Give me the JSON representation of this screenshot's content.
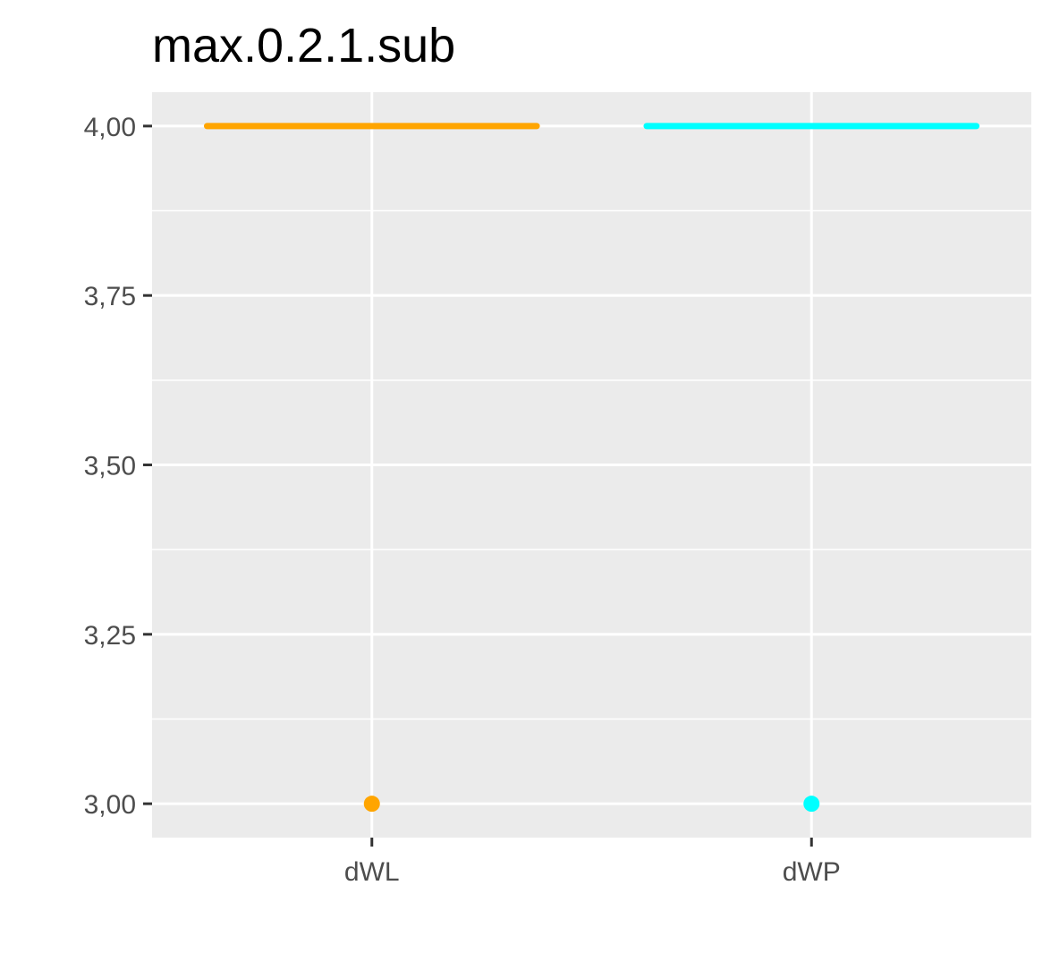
{
  "chart_data": {
    "type": "boxplot",
    "title": "max.0.2.1.sub",
    "xlabel": "",
    "ylabel": "",
    "categories": [
      "dWL",
      "dWP"
    ],
    "ylim": [
      2.95,
      4.05
    ],
    "y_ticks": [
      3.0,
      3.25,
      3.5,
      3.75,
      4.0
    ],
    "y_tick_labels": [
      "3,00",
      "3,25",
      "3,50",
      "3,75",
      "4,00"
    ],
    "grid": true,
    "legend": "none",
    "series": [
      {
        "category": "dWL",
        "color": "#FFA500",
        "box_value": 4.0,
        "outliers": [
          3.0
        ]
      },
      {
        "category": "dWP",
        "color": "#00FFFF",
        "box_value": 4.0,
        "outliers": [
          3.0
        ]
      }
    ],
    "panel_background": "#EBEBEB",
    "grid_color": "#FFFFFF"
  }
}
